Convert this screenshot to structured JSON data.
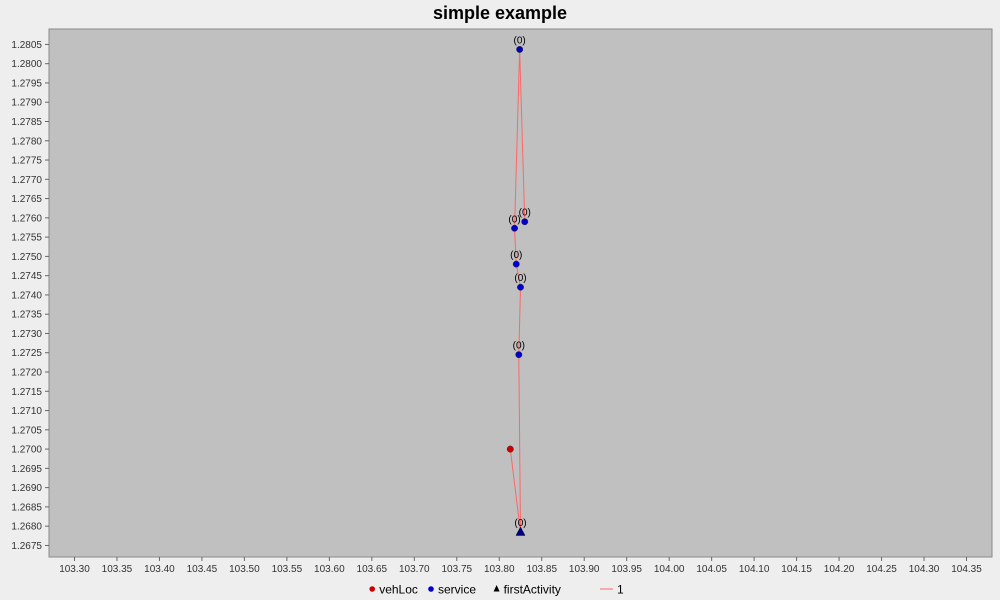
{
  "chart_data": {
    "type": "scatter",
    "title": "simple example",
    "xlabel": "",
    "ylabel": "",
    "xlim": [
      103.27,
      104.38
    ],
    "ylim": [
      1.2672,
      1.2809
    ],
    "x_ticks": [
      "103.30",
      "103.35",
      "103.40",
      "103.45",
      "103.50",
      "103.55",
      "103.60",
      "103.65",
      "103.70",
      "103.75",
      "103.80",
      "103.85",
      "103.90",
      "103.95",
      "104.00",
      "104.05",
      "104.10",
      "104.15",
      "104.20",
      "104.25",
      "104.30",
      "104.35"
    ],
    "y_ticks": [
      "1.2675",
      "1.2680",
      "1.2685",
      "1.2690",
      "1.2695",
      "1.2700",
      "1.2705",
      "1.2710",
      "1.2715",
      "1.2720",
      "1.2725",
      "1.2730",
      "1.2735",
      "1.2740",
      "1.2745",
      "1.2750",
      "1.2755",
      "1.2760",
      "1.2765",
      "1.2770",
      "1.2775",
      "1.2780",
      "1.2785",
      "1.2790",
      "1.2795",
      "1.2800",
      "1.2805"
    ],
    "grid": false,
    "legend_position": "bottom-center",
    "plot_background": "#c0c0c0",
    "series": [
      {
        "name": "vehLoc",
        "marker": "circle",
        "color": "#cc0000",
        "points": [
          {
            "x": 103.813,
            "y": 1.27
          }
        ]
      },
      {
        "name": "service",
        "marker": "circle",
        "color": "#0000cc",
        "points": [
          {
            "x": 103.824,
            "y": 1.28037,
            "label": "(0)"
          },
          {
            "x": 103.83,
            "y": 1.2759,
            "label": "(0)"
          },
          {
            "x": 103.818,
            "y": 1.27573,
            "label": "(0)"
          },
          {
            "x": 103.82,
            "y": 1.2748,
            "label": "(0)"
          },
          {
            "x": 103.825,
            "y": 1.2742,
            "label": "(0)"
          },
          {
            "x": 103.823,
            "y": 1.27245,
            "label": "(0)"
          }
        ]
      },
      {
        "name": "firstActivity",
        "marker": "triangle",
        "color": "#000080",
        "points": [
          {
            "x": 103.825,
            "y": 1.26785,
            "label": "(0)"
          }
        ]
      },
      {
        "name": "1",
        "marker": "line",
        "color": "#ff6666",
        "points": [
          {
            "x": 103.813,
            "y": 1.27
          },
          {
            "x": 103.825,
            "y": 1.26785
          },
          {
            "x": 103.823,
            "y": 1.27245
          },
          {
            "x": 103.825,
            "y": 1.2742
          },
          {
            "x": 103.82,
            "y": 1.2748
          },
          {
            "x": 103.818,
            "y": 1.27573
          },
          {
            "x": 103.824,
            "y": 1.28037
          },
          {
            "x": 103.83,
            "y": 1.2759
          }
        ]
      }
    ],
    "legend": [
      {
        "label": "vehLoc",
        "symbol": "circle",
        "color": "#cc0000"
      },
      {
        "label": "service",
        "symbol": "circle",
        "color": "#0000cc"
      },
      {
        "label": "firstActivity",
        "symbol": "triangle",
        "color": "#000000"
      },
      {
        "label": "1",
        "symbol": "line",
        "color": "#ff6666"
      }
    ]
  }
}
